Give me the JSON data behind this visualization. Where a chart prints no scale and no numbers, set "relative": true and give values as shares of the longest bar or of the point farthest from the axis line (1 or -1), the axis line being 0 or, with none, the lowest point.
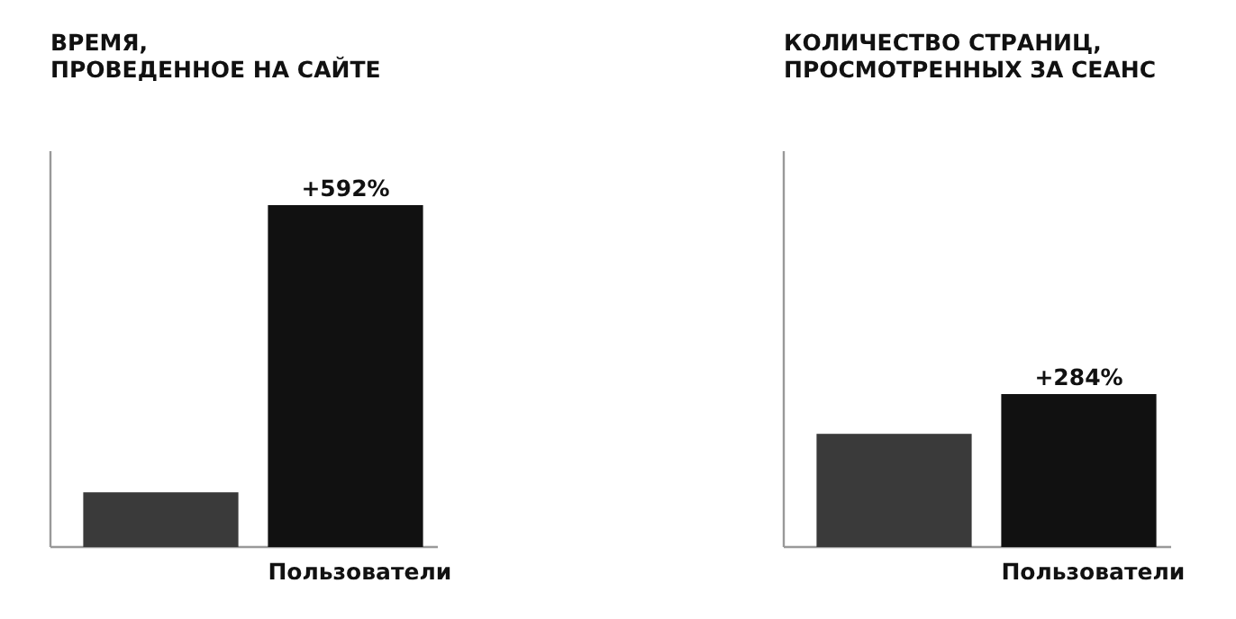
{
  "chart_data": [
    {
      "type": "bar",
      "title": "ВРЕМЯ,\nПРОВЕДЕННОЕ НА САЙТЕ",
      "relative": true,
      "categories": [
        null,
        "Пользователи"
      ],
      "values": [
        0.16,
        1
      ],
      "colors": [
        "#3a3a3a",
        "#111111"
      ],
      "annotations": [
        {
          "text": "+592%",
          "x": "Пользователи",
          "y": 1
        }
      ]
    },
    {
      "type": "bar",
      "title": "КОЛИЧЕСТВО СТРАНИЦ,\nПРОСМОТРЕННЫХ ЗА СЕАНС",
      "relative": true,
      "categories": [
        null,
        "Пользователи"
      ],
      "values": [
        0.74,
        1
      ],
      "colors": [
        "#3a3a3a",
        "#111111"
      ],
      "annotations": [
        {
          "text": "+284%",
          "x": "Пользователи",
          "y": 1
        }
      ]
    }
  ]
}
